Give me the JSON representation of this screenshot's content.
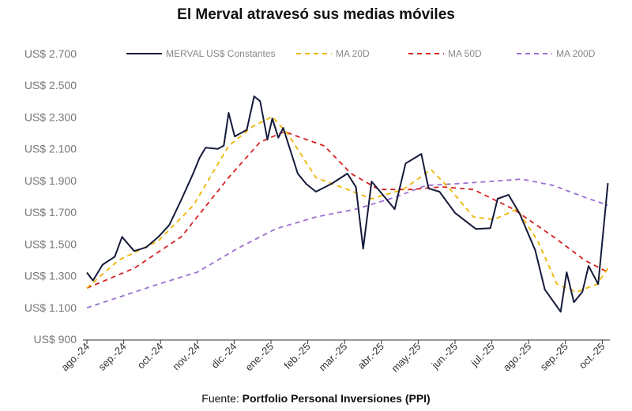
{
  "chart_data": {
    "type": "line",
    "title": "El Merval atravesó sus medias móviles",
    "source_prefix": "Fuente:",
    "source": "Portfolio Personal Inversiones (PPI)",
    "xlabel": "",
    "ylabel": "",
    "ylim": [
      900,
      2700
    ],
    "y_ticks": [
      "US$ 900",
      "US$ 1.100",
      "US$ 1.300",
      "US$ 1.500",
      "US$ 1.700",
      "US$ 1.900",
      "US$ 2.100",
      "US$ 2.300",
      "US$ 2.500",
      "US$ 2.700"
    ],
    "y_tick_values": [
      900,
      1100,
      1300,
      1500,
      1700,
      1900,
      2100,
      2300,
      2500,
      2700
    ],
    "x_ticks": [
      "ago.-24",
      "sep.-24",
      "oct.-24",
      "nov.-24",
      "dic.-24",
      "ene.-25",
      "feb.-25",
      "mar.-25",
      "abr.-25",
      "may.-25",
      "jun.-25",
      "jul.-25",
      "ago.-25",
      "sep.-25",
      "oct.-25"
    ],
    "grid": false,
    "legend_position": "top",
    "series": [
      {
        "name": "MERVAL US$ Constantes",
        "color": "#151a3a",
        "style": "solid",
        "points": [
          [
            "2024-08-01",
            1320
          ],
          [
            "2024-08-06",
            1270
          ],
          [
            "2024-08-14",
            1370
          ],
          [
            "2024-08-24",
            1420
          ],
          [
            "2024-08-30",
            1545
          ],
          [
            "2024-09-09",
            1456
          ],
          [
            "2024-09-19",
            1480
          ],
          [
            "2024-09-29",
            1545
          ],
          [
            "2024-10-08",
            1620
          ],
          [
            "2024-10-18",
            1780
          ],
          [
            "2024-10-28",
            1950
          ],
          [
            "2024-11-02",
            2043
          ],
          [
            "2024-11-07",
            2108
          ],
          [
            "2024-11-17",
            2100
          ],
          [
            "2024-11-22",
            2120
          ],
          [
            "2024-11-26",
            2327
          ],
          [
            "2024-12-01",
            2178
          ],
          [
            "2024-12-11",
            2220
          ],
          [
            "2024-12-17",
            2431
          ],
          [
            "2024-12-22",
            2400
          ],
          [
            "2024-12-28",
            2158
          ],
          [
            "2025-01-01",
            2292
          ],
          [
            "2025-01-06",
            2170
          ],
          [
            "2025-01-10",
            2232
          ],
          [
            "2025-01-22",
            1944
          ],
          [
            "2025-01-29",
            1879
          ],
          [
            "2025-02-06",
            1830
          ],
          [
            "2025-02-19",
            1880
          ],
          [
            "2025-03-04",
            1944
          ],
          [
            "2025-03-11",
            1860
          ],
          [
            "2025-03-17",
            1471
          ],
          [
            "2025-03-24",
            1894
          ],
          [
            "2025-03-30",
            1840
          ],
          [
            "2025-04-12",
            1720
          ],
          [
            "2025-04-21",
            2008
          ],
          [
            "2025-05-04",
            2068
          ],
          [
            "2025-05-10",
            1850
          ],
          [
            "2025-05-19",
            1830
          ],
          [
            "2025-06-01",
            1695
          ],
          [
            "2025-06-18",
            1595
          ],
          [
            "2025-06-30",
            1600
          ],
          [
            "2025-07-06",
            1785
          ],
          [
            "2025-07-15",
            1810
          ],
          [
            "2025-07-24",
            1695
          ],
          [
            "2025-08-06",
            1461
          ],
          [
            "2025-08-14",
            1213
          ],
          [
            "2025-08-27",
            1073
          ],
          [
            "2025-09-01",
            1322
          ],
          [
            "2025-09-07",
            1133
          ],
          [
            "2025-09-14",
            1200
          ],
          [
            "2025-09-19",
            1362
          ],
          [
            "2025-09-27",
            1247
          ],
          [
            "2025-10-05",
            1884
          ]
        ]
      },
      {
        "name": "MA 20D",
        "color": "#f0b400",
        "style": "dashed",
        "points": [
          [
            "2024-08-01",
            1222
          ],
          [
            "2024-08-27",
            1397
          ],
          [
            "2024-09-29",
            1520
          ],
          [
            "2024-10-28",
            1745
          ],
          [
            "2024-11-26",
            2118
          ],
          [
            "2024-12-16",
            2242
          ],
          [
            "2025-01-01",
            2302
          ],
          [
            "2025-01-14",
            2192
          ],
          [
            "2025-02-06",
            1919
          ],
          [
            "2025-03-04",
            1844
          ],
          [
            "2025-03-24",
            1785
          ],
          [
            "2025-04-19",
            1844
          ],
          [
            "2025-05-12",
            1969
          ],
          [
            "2025-05-28",
            1844
          ],
          [
            "2025-06-16",
            1670
          ],
          [
            "2025-07-03",
            1655
          ],
          [
            "2025-07-22",
            1720
          ],
          [
            "2025-08-08",
            1521
          ],
          [
            "2025-08-24",
            1247
          ],
          [
            "2025-09-09",
            1197
          ],
          [
            "2025-09-26",
            1247
          ],
          [
            "2025-10-05",
            1347
          ]
        ]
      },
      {
        "name": "MA 50D",
        "color": "#d62020",
        "style": "dashed",
        "points": [
          [
            "2024-08-01",
            1222
          ],
          [
            "2024-09-09",
            1347
          ],
          [
            "2024-10-18",
            1546
          ],
          [
            "2024-11-26",
            1919
          ],
          [
            "2024-12-22",
            2143
          ],
          [
            "2025-01-11",
            2208
          ],
          [
            "2025-02-13",
            2118
          ],
          [
            "2025-03-07",
            1944
          ],
          [
            "2025-03-30",
            1844
          ],
          [
            "2025-04-25",
            1844
          ],
          [
            "2025-05-21",
            1860
          ],
          [
            "2025-06-16",
            1844
          ],
          [
            "2025-07-19",
            1720
          ],
          [
            "2025-08-21",
            1546
          ],
          [
            "2025-09-16",
            1397
          ],
          [
            "2025-10-05",
            1322
          ]
        ]
      },
      {
        "name": "MA 200D",
        "color": "#9a6fd0",
        "style": "dashed",
        "points": [
          [
            "2024-08-01",
            1098
          ],
          [
            "2024-09-29",
            1247
          ],
          [
            "2024-10-31",
            1322
          ],
          [
            "2024-12-03",
            1471
          ],
          [
            "2025-01-04",
            1596
          ],
          [
            "2025-02-06",
            1670
          ],
          [
            "2025-03-11",
            1720
          ],
          [
            "2025-04-12",
            1794
          ],
          [
            "2025-05-08",
            1869
          ],
          [
            "2025-06-10",
            1884
          ],
          [
            "2025-07-26",
            1909
          ],
          [
            "2025-08-21",
            1869
          ],
          [
            "2025-09-16",
            1794
          ],
          [
            "2025-10-05",
            1745
          ]
        ]
      }
    ]
  }
}
